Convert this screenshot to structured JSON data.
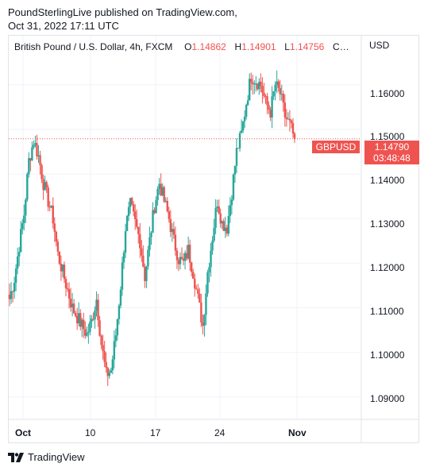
{
  "header": {
    "line1": "PoundSterlingLive published on TradingView.com,",
    "line2": "Oct 31, 2022 17:11 UTC"
  },
  "legend": {
    "symbol": "British Pound / U.S. Dollar, 4h, FXCM",
    "open_label": "O",
    "open_value": "1.14862",
    "high_label": "H",
    "high_value": "1.14901",
    "low_label": "L",
    "low_value": "1.14756",
    "close_label": "C…"
  },
  "axis": {
    "currency": "USD"
  },
  "price_tag": {
    "symbol": "GBPUSD",
    "price": "1.14790",
    "countdown": "03:48:48"
  },
  "brand": {
    "name": "TradingView",
    "logo_icon": "tradingview-logo-icon"
  },
  "colors": {
    "up": "#26a69a",
    "down": "#ef5350",
    "grid": "#f0f3fa",
    "border": "#e0e3eb"
  },
  "chart_data": {
    "type": "candlestick",
    "instrument": "GBPUSD",
    "timeframe": "4h",
    "y_ticks": [
      "1.16000",
      "1.15000",
      "1.14000",
      "1.13000",
      "1.12000",
      "1.11000",
      "1.10000",
      "1.09000"
    ],
    "ylim": [
      1.085,
      1.171
    ],
    "x_ticks": [
      "Oct",
      "10",
      "17",
      "24",
      "Nov"
    ],
    "last_price": 1.1479,
    "series": [
      {
        "x": "Oct 3",
        "close": 1.112
      },
      {
        "x": "Oct 3",
        "close": 1.1165
      },
      {
        "x": "Oct 4",
        "close": 1.124
      },
      {
        "x": "Oct 4",
        "close": 1.131
      },
      {
        "x": "Oct 4",
        "close": 1.143
      },
      {
        "x": "Oct 5",
        "close": 1.1475
      },
      {
        "x": "Oct 5",
        "close": 1.144
      },
      {
        "x": "Oct 5",
        "close": 1.138
      },
      {
        "x": "Oct 6",
        "close": 1.134
      },
      {
        "x": "Oct 6",
        "close": 1.13
      },
      {
        "x": "Oct 6",
        "close": 1.122
      },
      {
        "x": "Oct 7",
        "close": 1.118
      },
      {
        "x": "Oct 7",
        "close": 1.114
      },
      {
        "x": "Oct 7",
        "close": 1.11
      },
      {
        "x": "Oct 10",
        "close": 1.108
      },
      {
        "x": "Oct 10",
        "close": 1.106
      },
      {
        "x": "Oct 11",
        "close": 1.104
      },
      {
        "x": "Oct 11",
        "close": 1.107
      },
      {
        "x": "Oct 11",
        "close": 1.112
      },
      {
        "x": "Oct 12",
        "close": 1.102
      },
      {
        "x": "Oct 12",
        "close": 1.095
      },
      {
        "x": "Oct 12",
        "close": 1.096
      },
      {
        "x": "Oct 13",
        "close": 1.104
      },
      {
        "x": "Oct 13",
        "close": 1.115
      },
      {
        "x": "Oct 13",
        "close": 1.128
      },
      {
        "x": "Oct 14",
        "close": 1.133
      },
      {
        "x": "Oct 14",
        "close": 1.129
      },
      {
        "x": "Oct 14",
        "close": 1.125
      },
      {
        "x": "Oct 17",
        "close": 1.117
      },
      {
        "x": "Oct 17",
        "close": 1.125
      },
      {
        "x": "Oct 17",
        "close": 1.133
      },
      {
        "x": "Oct 18",
        "close": 1.138
      },
      {
        "x": "Oct 18",
        "close": 1.134
      },
      {
        "x": "Oct 18",
        "close": 1.13
      },
      {
        "x": "Oct 19",
        "close": 1.125
      },
      {
        "x": "Oct 19",
        "close": 1.121
      },
      {
        "x": "Oct 19",
        "close": 1.12
      },
      {
        "x": "Oct 20",
        "close": 1.123
      },
      {
        "x": "Oct 20",
        "close": 1.118
      },
      {
        "x": "Oct 20",
        "close": 1.112
      },
      {
        "x": "Oct 21",
        "close": 1.106
      },
      {
        "x": "Oct 21",
        "close": 1.118
      },
      {
        "x": "Oct 21",
        "close": 1.126
      },
      {
        "x": "Oct 24",
        "close": 1.134
      },
      {
        "x": "Oct 24",
        "close": 1.129
      },
      {
        "x": "Oct 24",
        "close": 1.128
      },
      {
        "x": "Oct 25",
        "close": 1.136
      },
      {
        "x": "Oct 25",
        "close": 1.145
      },
      {
        "x": "Oct 25",
        "close": 1.149
      },
      {
        "x": "Oct 26",
        "close": 1.156
      },
      {
        "x": "Oct 26",
        "close": 1.162
      },
      {
        "x": "Oct 26",
        "close": 1.161
      },
      {
        "x": "Oct 27",
        "close": 1.16
      },
      {
        "x": "Oct 27",
        "close": 1.156
      },
      {
        "x": "Oct 27",
        "close": 1.154
      },
      {
        "x": "Oct 28",
        "close": 1.16
      },
      {
        "x": "Oct 28",
        "close": 1.158
      },
      {
        "x": "Oct 28",
        "close": 1.153
      },
      {
        "x": "Oct 31",
        "close": 1.151
      },
      {
        "x": "Oct 31",
        "close": 1.1479
      }
    ]
  }
}
